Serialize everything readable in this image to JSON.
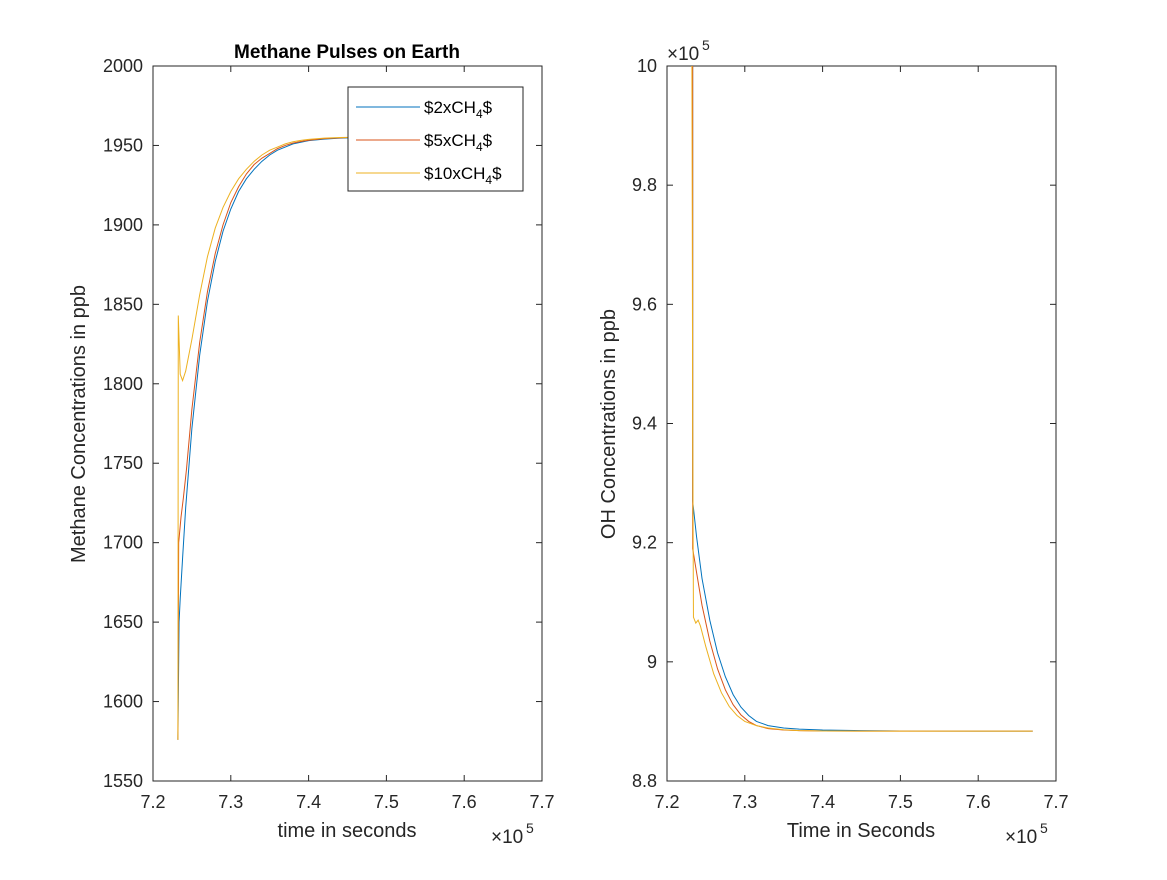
{
  "figure": {
    "colors": {
      "series": [
        "#0072BD",
        "#D95319",
        "#EDB120"
      ],
      "axis": "#262626",
      "background": "#ffffff"
    }
  },
  "chart_data": [
    {
      "type": "line",
      "title": "Methane Pulses on Earth",
      "xlabel": "time in seconds",
      "ylabel": "Methane Concentrations in ppb",
      "xlim": [
        720000,
        770000
      ],
      "ylim": [
        1550,
        2000
      ],
      "x_exponent_label": "×10",
      "x_exponent_power": "5",
      "x_ticks": [
        720000,
        730000,
        740000,
        750000,
        760000,
        770000
      ],
      "x_tick_labels": [
        "7.2",
        "7.3",
        "7.4",
        "7.5",
        "7.6",
        "7.7"
      ],
      "y_ticks": [
        1550,
        1600,
        1650,
        1700,
        1750,
        1800,
        1850,
        1900,
        1950,
        2000
      ],
      "y_tick_labels": [
        "1550",
        "1600",
        "1650",
        "1700",
        "1750",
        "1800",
        "1850",
        "1900",
        "1950",
        "2000"
      ],
      "legend": {
        "position": "top-right",
        "entries": [
          {
            "prefix": "$2xCH",
            "sub": "4",
            "suffix": "$"
          },
          {
            "prefix": "$5xCH",
            "sub": "4",
            "suffix": "$"
          },
          {
            "prefix": "$10xCH",
            "sub": "4",
            "suffix": "$"
          }
        ]
      },
      "grid": false,
      "series": [
        {
          "color": "#0072BD",
          "points": [
            [
              723200,
              1576
            ],
            [
              723350,
              1650
            ],
            [
              723500,
              1665
            ],
            [
              723800,
              1690
            ],
            [
              724200,
              1722
            ],
            [
              725000,
              1772
            ],
            [
              726000,
              1818
            ],
            [
              727000,
              1852
            ],
            [
              728000,
              1877
            ],
            [
              729000,
              1896
            ],
            [
              730000,
              1910
            ],
            [
              731000,
              1921
            ],
            [
              732000,
              1929
            ],
            [
              733000,
              1935
            ],
            [
              734000,
              1940
            ],
            [
              735000,
              1944
            ],
            [
              736000,
              1947
            ],
            [
              737000,
              1949
            ],
            [
              738000,
              1951
            ],
            [
              739000,
              1952
            ],
            [
              740000,
              1953
            ],
            [
              742000,
              1954
            ],
            [
              744000,
              1954.6
            ],
            [
              745000,
              1954.8
            ]
          ]
        },
        {
          "color": "#D95319",
          "points": [
            [
              723200,
              1576
            ],
            [
              723300,
              1700
            ],
            [
              723600,
              1716
            ],
            [
              723900,
              1728
            ],
            [
              724300,
              1746
            ],
            [
              725000,
              1784
            ],
            [
              726000,
              1826
            ],
            [
              727000,
              1858
            ],
            [
              728000,
              1882
            ],
            [
              729000,
              1900
            ],
            [
              730000,
              1914
            ],
            [
              731000,
              1924
            ],
            [
              732000,
              1932
            ],
            [
              733000,
              1938
            ],
            [
              734000,
              1942
            ],
            [
              735000,
              1945
            ],
            [
              736000,
              1948
            ],
            [
              737000,
              1950
            ],
            [
              738000,
              1951.5
            ],
            [
              739000,
              1952.5
            ],
            [
              740000,
              1953.3
            ],
            [
              742000,
              1954.3
            ],
            [
              744000,
              1954.8
            ],
            [
              745000,
              1955
            ]
          ]
        },
        {
          "color": "#EDB120",
          "points": [
            [
              723200,
              1576
            ],
            [
              723250,
              1843
            ],
            [
              723500,
              1806
            ],
            [
              723800,
              1802
            ],
            [
              724200,
              1808
            ],
            [
              725000,
              1828
            ],
            [
              726000,
              1856
            ],
            [
              727000,
              1880
            ],
            [
              728000,
              1898
            ],
            [
              729000,
              1911
            ],
            [
              730000,
              1921
            ],
            [
              731000,
              1929
            ],
            [
              732000,
              1935
            ],
            [
              733000,
              1940
            ],
            [
              734000,
              1944
            ],
            [
              735000,
              1947
            ],
            [
              736000,
              1949
            ],
            [
              737000,
              1951
            ],
            [
              738000,
              1952.3
            ],
            [
              739000,
              1953.2
            ],
            [
              740000,
              1953.8
            ],
            [
              742000,
              1954.6
            ],
            [
              744000,
              1955
            ],
            [
              745000,
              1955.1
            ]
          ]
        }
      ]
    },
    {
      "type": "line",
      "title": "",
      "xlabel": "Time in Seconds",
      "ylabel": "OH Concentrations in ppb",
      "xlim": [
        720000,
        770000
      ],
      "ylim": [
        880000,
        1000000
      ],
      "x_exponent_label": "×10",
      "x_exponent_power": "5",
      "y_exponent_label": "×10",
      "y_exponent_power": "5",
      "x_ticks": [
        720000,
        730000,
        740000,
        750000,
        760000,
        770000
      ],
      "x_tick_labels": [
        "7.2",
        "7.3",
        "7.4",
        "7.5",
        "7.6",
        "7.7"
      ],
      "y_ticks": [
        880000,
        900000,
        920000,
        940000,
        960000,
        980000,
        1000000
      ],
      "y_tick_labels": [
        "8.8",
        "9",
        "9.2",
        "9.4",
        "9.6",
        "9.8",
        "10"
      ],
      "grid": false,
      "series": [
        {
          "color": "#0072BD",
          "points": [
            [
              723300,
              1000000
            ],
            [
              723300,
              927000
            ],
            [
              723800,
              921000
            ],
            [
              724500,
              914000
            ],
            [
              725500,
              907000
            ],
            [
              726500,
              901500
            ],
            [
              727500,
              897500
            ],
            [
              728500,
              894500
            ],
            [
              729500,
              892400
            ],
            [
              730500,
              891000
            ],
            [
              731500,
              890000
            ],
            [
              733000,
              889300
            ],
            [
              735000,
              888900
            ],
            [
              737000,
              888700
            ],
            [
              740000,
              888550
            ],
            [
              745000,
              888450
            ],
            [
              750000,
              888400
            ],
            [
              760000,
              888380
            ],
            [
              767000,
              888380
            ]
          ]
        },
        {
          "color": "#D95319",
          "points": [
            [
              723300,
              1000000
            ],
            [
              723300,
              919000
            ],
            [
              723800,
              915000
            ],
            [
              724500,
              909500
            ],
            [
              725500,
              903500
            ],
            [
              726500,
              898800
            ],
            [
              727500,
              895300
            ],
            [
              728500,
              892800
            ],
            [
              729500,
              891100
            ],
            [
              730500,
              890000
            ],
            [
              731500,
              889300
            ],
            [
              733000,
              888800
            ],
            [
              735000,
              888550
            ],
            [
              737000,
              888450
            ],
            [
              740000,
              888400
            ],
            [
              745000,
              888380
            ],
            [
              750000,
              888380
            ],
            [
              760000,
              888380
            ],
            [
              767000,
              888380
            ]
          ]
        },
        {
          "color": "#EDB120",
          "points": [
            [
              723200,
              1000000
            ],
            [
              723250,
              975000
            ],
            [
              723300,
              940000
            ],
            [
              723400,
              907500
            ],
            [
              723700,
              906500
            ],
            [
              724000,
              907000
            ],
            [
              724300,
              906000
            ],
            [
              725000,
              902500
            ],
            [
              726000,
              898000
            ],
            [
              727000,
              894800
            ],
            [
              728000,
              892500
            ],
            [
              729000,
              891000
            ],
            [
              730000,
              890000
            ],
            [
              731500,
              889300
            ],
            [
              733000,
              888900
            ],
            [
              735000,
              888600
            ],
            [
              737000,
              888450
            ],
            [
              740000,
              888400
            ],
            [
              745000,
              888380
            ],
            [
              750000,
              888380
            ],
            [
              767000,
              888380
            ]
          ]
        }
      ]
    }
  ]
}
